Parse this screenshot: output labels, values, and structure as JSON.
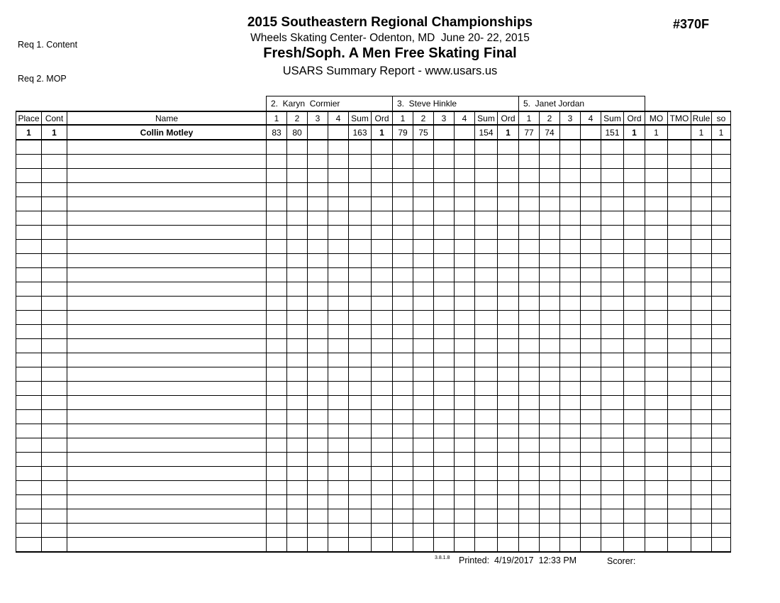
{
  "page": {
    "req1": "Req 1. Content",
    "req2": "Req 2. MOP",
    "title": "2015 Southeastern Regional Championships",
    "venue": "Wheels Skating Center- Odenton, MD  June 20- 22, 2015",
    "event": "Fresh/Soph. A Men Free Skating Final",
    "report": "USARS Summary Report - www.usars.us",
    "event_number": "#370F"
  },
  "judges": [
    {
      "label": "2.  Karyn  Cormier"
    },
    {
      "label": "3.  Steve Hinkle"
    },
    {
      "label": "5.  Janet Jordan"
    }
  ],
  "columns": {
    "place": "Place",
    "cont": "Cont",
    "name": "Name",
    "judge": [
      "1",
      "2",
      "3",
      "4",
      "Sum",
      "Ord"
    ],
    "tail": [
      "MO",
      "TMO",
      "Rule",
      "so"
    ]
  },
  "rows": [
    {
      "place": "1",
      "cont": "1",
      "name": "Collin Motley",
      "judges": [
        [
          "83",
          "80",
          "",
          "",
          "163",
          "1"
        ],
        [
          "79",
          "75",
          "",
          "",
          "154",
          "1"
        ],
        [
          "77",
          "74",
          "",
          "",
          "151",
          "1"
        ]
      ],
      "tail": [
        "1",
        "",
        "1",
        "1"
      ]
    }
  ],
  "empty_rows": 29,
  "footer": {
    "version": "3.8.1.8",
    "printed": "Printed:  4/19/2017  12:33 PM",
    "scorer_label": "Scorer:"
  }
}
